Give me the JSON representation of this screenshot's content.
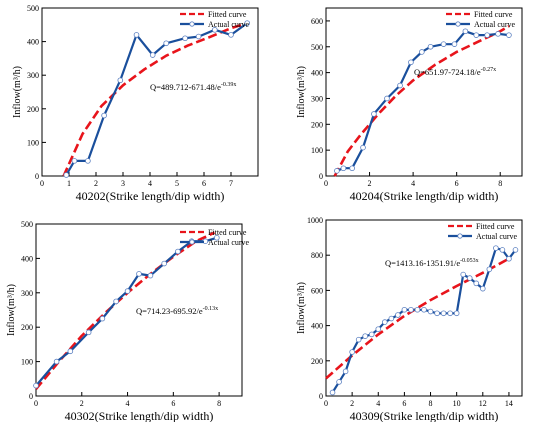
{
  "chart_data": [
    {
      "type": "line",
      "id": "40202",
      "xlabel": "40202(Strike length/dip width)",
      "ylabel": "Inflow(m³/h)",
      "xlim": [
        0,
        8
      ],
      "ylim": [
        0,
        500
      ],
      "xticks": [
        0,
        1,
        2,
        3,
        4,
        5,
        6,
        7
      ],
      "yticks": [
        0,
        100,
        200,
        300,
        400,
        500
      ],
      "legend": [
        "Fitted curve",
        "Actual curve"
      ],
      "legend_position": "top-right",
      "equation": {
        "base": "Q=489.712-671.48/e",
        "sup": "-0.39x"
      },
      "series": [
        {
          "name": "Fitted curve",
          "color": "#e8141b",
          "dashed": true,
          "markers": false,
          "x": [
            0.8,
            1.5,
            2.2,
            3.0,
            3.8,
            4.6,
            5.4,
            6.2,
            7.0,
            7.6
          ],
          "values": [
            0,
            125,
            208,
            270,
            318,
            358,
            388,
            413,
            440,
            455
          ]
        },
        {
          "name": "Actual curve",
          "color": "#1a4f9c",
          "dashed": false,
          "markers": true,
          "x": [
            0.9,
            1.2,
            1.7,
            2.3,
            2.9,
            3.5,
            4.1,
            4.6,
            5.3,
            5.8,
            6.4,
            7.0,
            7.6
          ],
          "values": [
            3,
            45,
            45,
            180,
            285,
            420,
            360,
            395,
            410,
            415,
            435,
            420,
            455
          ]
        }
      ]
    },
    {
      "type": "line",
      "id": "40204",
      "xlabel": "40204(Strike length/dip width)",
      "ylabel": "Inflow(m³/h)",
      "xlim": [
        0,
        9
      ],
      "ylim": [
        0,
        650
      ],
      "xticks": [
        0,
        2,
        4,
        6,
        8
      ],
      "yticks": [
        0,
        100,
        200,
        300,
        400,
        500,
        600
      ],
      "legend": [
        "Fitted curve",
        "Actual curve"
      ],
      "legend_position": "top-right",
      "equation": {
        "base": "Q=651.97-724.18/e",
        "sup": "-0.27x"
      },
      "series": [
        {
          "name": "Fitted curve",
          "color": "#e8141b",
          "dashed": true,
          "markers": false,
          "x": [
            0.4,
            1.0,
            1.6,
            2.4,
            3.2,
            4.0,
            5.0,
            6.0,
            7.0,
            8.0,
            8.4
          ],
          "values": [
            0,
            95,
            160,
            240,
            310,
            370,
            430,
            480,
            520,
            560,
            580
          ]
        },
        {
          "name": "Actual curve",
          "color": "#1a4f9c",
          "dashed": false,
          "markers": true,
          "x": [
            0.5,
            0.8,
            1.2,
            1.7,
            2.2,
            2.8,
            3.4,
            3.9,
            4.4,
            4.8,
            5.4,
            5.9,
            6.4,
            6.9,
            7.4,
            7.9,
            8.4
          ],
          "values": [
            20,
            30,
            30,
            110,
            240,
            300,
            350,
            440,
            480,
            500,
            510,
            510,
            560,
            545,
            545,
            550,
            545
          ]
        }
      ]
    },
    {
      "type": "line",
      "id": "40302",
      "xlabel": "40302(Strike length/dip width)",
      "ylabel": "Inflow(m³/h)",
      "xlim": [
        0,
        9
      ],
      "ylim": [
        0,
        500
      ],
      "xticks": [
        0,
        2,
        4,
        6,
        8
      ],
      "yticks": [
        0,
        100,
        200,
        300,
        400,
        500
      ],
      "legend": [
        "Fitted curve",
        "Actual curve"
      ],
      "legend_position": "top-right",
      "equation": {
        "base": "Q=714.23-695.92/e",
        "sup": "-0.13x"
      },
      "series": [
        {
          "name": "Fitted curve",
          "color": "#e8141b",
          "dashed": true,
          "markers": false,
          "x": [
            0,
            1,
            2,
            3,
            4,
            5,
            6,
            7,
            7.8
          ],
          "values": [
            20,
            100,
            175,
            240,
            300,
            355,
            405,
            450,
            475
          ]
        },
        {
          "name": "Actual curve",
          "color": "#1a4f9c",
          "dashed": false,
          "markers": true,
          "x": [
            0,
            0.9,
            1.5,
            2.3,
            2.9,
            3.5,
            4.0,
            4.5,
            5.0,
            5.6,
            6.2,
            6.8,
            7.4,
            7.9
          ],
          "values": [
            30,
            100,
            130,
            185,
            225,
            275,
            305,
            355,
            350,
            385,
            420,
            450,
            450,
            460
          ]
        }
      ]
    },
    {
      "type": "line",
      "id": "40309",
      "xlabel": "40309(Strike length/dip width)",
      "ylabel": "Inflow(m³/h)",
      "xlim": [
        0,
        15
      ],
      "ylim": [
        0,
        1000
      ],
      "xticks": [
        0,
        2,
        4,
        6,
        8,
        10,
        12,
        14
      ],
      "yticks": [
        0,
        200,
        400,
        600,
        800,
        1000
      ],
      "legend": [
        "Fitted curve",
        "Actual curve"
      ],
      "legend_position": "top-right",
      "equation": {
        "base": "Q=1413.16-1351.91/e",
        "sup": "-0.053x"
      },
      "series": [
        {
          "name": "Fitted curve",
          "color": "#e8141b",
          "dashed": true,
          "markers": false,
          "x": [
            0,
            2,
            4,
            6,
            8,
            10,
            12,
            14
          ],
          "values": [
            100,
            230,
            350,
            455,
            545,
            625,
            700,
            780
          ]
        },
        {
          "name": "Actual curve",
          "color": "#1a4f9c",
          "dashed": false,
          "markers": true,
          "x": [
            0.5,
            1.0,
            1.5,
            2.0,
            2.5,
            3.0,
            3.5,
            4.0,
            4.5,
            5.0,
            5.5,
            6.0,
            6.5,
            7.0,
            7.5,
            8.0,
            8.5,
            9.0,
            9.5,
            10.0,
            10.5,
            11.0,
            11.5,
            12.0,
            12.5,
            13.0,
            13.5,
            14.0,
            14.5
          ],
          "values": [
            20,
            80,
            140,
            250,
            320,
            340,
            350,
            380,
            420,
            440,
            460,
            490,
            490,
            490,
            490,
            480,
            470,
            470,
            470,
            470,
            690,
            670,
            640,
            610,
            720,
            840,
            830,
            780,
            830
          ]
        }
      ]
    }
  ]
}
